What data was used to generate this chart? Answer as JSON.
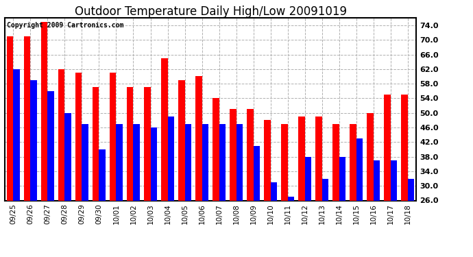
{
  "title": "Outdoor Temperature Daily High/Low 20091019",
  "copyright": "Copyright 2009 Cartronics.com",
  "categories": [
    "09/25",
    "09/26",
    "09/27",
    "09/28",
    "09/29",
    "09/30",
    "10/01",
    "10/02",
    "10/03",
    "10/04",
    "10/05",
    "10/06",
    "10/07",
    "10/08",
    "10/09",
    "10/10",
    "10/11",
    "10/12",
    "10/13",
    "10/14",
    "10/15",
    "10/16",
    "10/17",
    "10/18"
  ],
  "highs": [
    71,
    71,
    75,
    62,
    61,
    57,
    61,
    57,
    57,
    65,
    59,
    60,
    54,
    51,
    51,
    48,
    47,
    49,
    49,
    47,
    47,
    50,
    55,
    55
  ],
  "lows": [
    62,
    59,
    56,
    50,
    47,
    40,
    47,
    47,
    46,
    49,
    47,
    47,
    47,
    47,
    41,
    31,
    27,
    38,
    32,
    38,
    43,
    37,
    37,
    32
  ],
  "high_color": "#ff0000",
  "low_color": "#0000ff",
  "bg_color": "#ffffff",
  "grid_color": "#b0b0b0",
  "ylim_min": 26.0,
  "ylim_max": 76.0,
  "yticks": [
    26.0,
    30.0,
    34.0,
    38.0,
    42.0,
    46.0,
    50.0,
    54.0,
    58.0,
    62.0,
    66.0,
    70.0,
    74.0
  ],
  "title_fontsize": 12,
  "copyright_fontsize": 7,
  "bar_width": 0.38
}
